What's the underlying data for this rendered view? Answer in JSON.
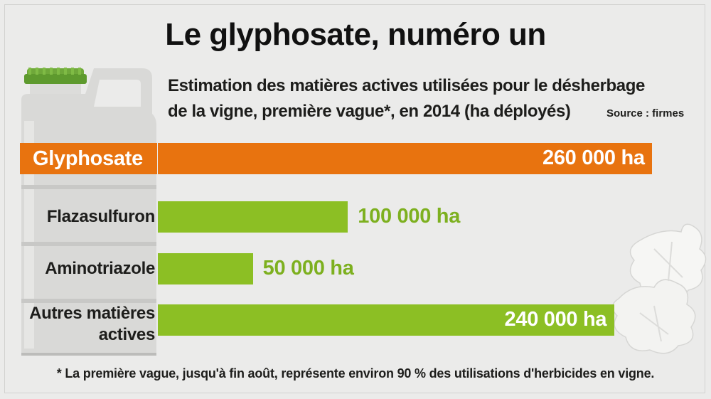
{
  "title": "Le glyphosate, numéro un",
  "subtitle_line1": "Estimation des matières actives utilisées pour le désherbage",
  "subtitle_line2": "de la vigne, première vague*, en 2014 (ha déployés)",
  "source": "Source : firmes",
  "footnote": "* La première vague, jusqu'à fin août, représente environ 90 % des utilisations d'herbicides en vigne.",
  "colors": {
    "highlight": "#e8730f",
    "bar": "#8cbf24",
    "value_text": "#7db01f",
    "background": "#ebebea"
  },
  "illustrations": [
    "herbicide-canister-icon",
    "vine-leaf-icon"
  ],
  "chart_data": {
    "type": "bar",
    "orientation": "horizontal",
    "categories": [
      "Glyphosate",
      "Flazasulfuron",
      "Aminotriazole",
      "Autres matières actives"
    ],
    "category_lines": [
      [
        "Glyphosate"
      ],
      [
        "Flazasulfuron"
      ],
      [
        "Aminotriazole"
      ],
      [
        "Autres matières",
        "actives"
      ]
    ],
    "values": [
      260000,
      100000,
      50000,
      240000
    ],
    "value_labels": [
      "260 000 ha",
      "100 000 ha",
      "50 000 ha",
      "240 000 ha"
    ],
    "unit": "ha",
    "highlight_index": 0,
    "xlim": [
      0,
      260000
    ],
    "grid": false,
    "legend": "none"
  }
}
